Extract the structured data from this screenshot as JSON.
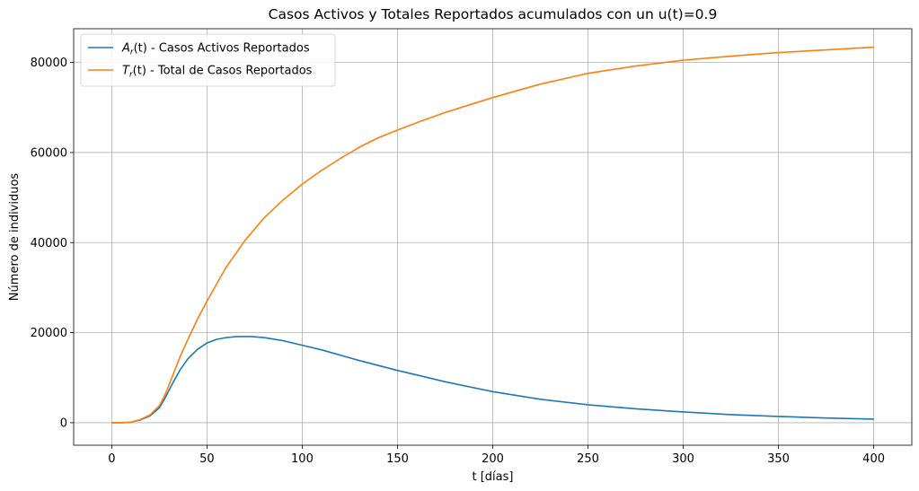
{
  "chart_data": {
    "type": "line",
    "title": "Casos Activos y Totales Reportados acumulados con un u(t)=0.9",
    "xlabel": "t [días]",
    "ylabel": "Número de individuos",
    "xlim": [
      -20,
      420
    ],
    "ylim": [
      -5000,
      87500
    ],
    "xticks": [
      0,
      50,
      100,
      150,
      200,
      250,
      300,
      350,
      400
    ],
    "yticks": [
      0,
      20000,
      40000,
      60000,
      80000
    ],
    "grid": true,
    "legend_position": "top-left",
    "series": [
      {
        "name": "A_r(t) - Casos Activos Reportados",
        "legend_var": "A",
        "legend_sub": "r",
        "legend_rest": "(t) - Casos Activos Reportados",
        "color": "#1f77b4",
        "x": [
          0,
          5,
          10,
          15,
          20,
          25,
          28,
          32,
          36,
          40,
          45,
          50,
          55,
          60,
          65,
          70,
          73,
          80,
          90,
          100,
          110,
          120,
          130,
          140,
          150,
          160,
          175,
          200,
          225,
          250,
          275,
          300,
          325,
          350,
          375,
          400
        ],
        "y": [
          0,
          0,
          100,
          600,
          1500,
          3300,
          5500,
          8800,
          11800,
          14200,
          16300,
          17700,
          18500,
          18900,
          19100,
          19150,
          19150,
          18900,
          18200,
          17200,
          16200,
          15000,
          13800,
          12700,
          11600,
          10600,
          9100,
          6900,
          5200,
          4000,
          3100,
          2400,
          1800,
          1400,
          1050,
          800
        ]
      },
      {
        "name": "T_r(t) - Total de Casos Reportados",
        "legend_var": "T",
        "legend_sub": "r",
        "legend_rest": "(t) - Total de Casos Reportados",
        "color": "#ff7f0e",
        "x": [
          0,
          5,
          10,
          15,
          20,
          25,
          28,
          32,
          36,
          40,
          45,
          50,
          60,
          70,
          80,
          90,
          100,
          110,
          120,
          130,
          140,
          150,
          160,
          175,
          200,
          225,
          250,
          275,
          300,
          325,
          350,
          375,
          400
        ],
        "y": [
          0,
          0,
          100,
          700,
          1700,
          3800,
          6200,
          10500,
          14800,
          18500,
          23000,
          27000,
          34500,
          40500,
          45500,
          49500,
          53000,
          56000,
          58700,
          61200,
          63300,
          65000,
          66600,
          68900,
          72200,
          75200,
          77600,
          79200,
          80500,
          81400,
          82200,
          82800,
          83400
        ]
      }
    ]
  }
}
